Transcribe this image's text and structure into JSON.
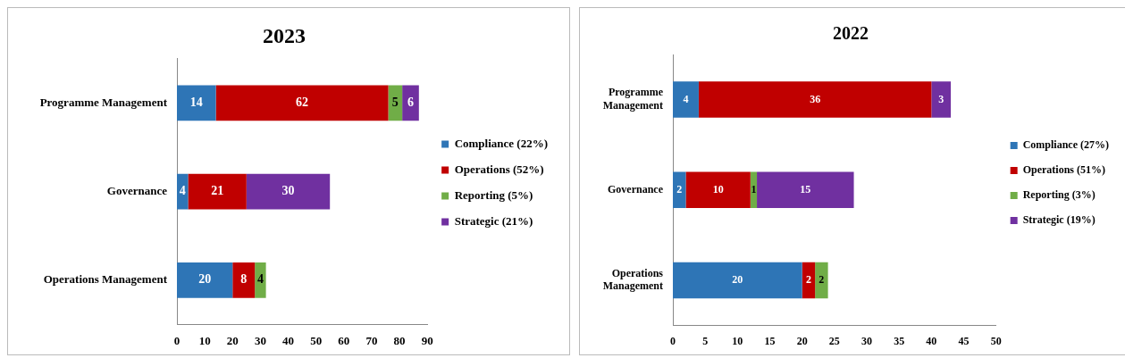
{
  "chart_data": [
    {
      "type": "bar",
      "orientation": "horizontal",
      "stacked": true,
      "title": "2023",
      "categories": [
        "Programme Management",
        "Governance",
        "Operations Management"
      ],
      "series": [
        {
          "name": "Compliance (22%)",
          "color": "#2e75b6",
          "values": [
            14,
            4,
            20
          ]
        },
        {
          "name": "Operations (52%)",
          "color": "#c00000",
          "values": [
            62,
            21,
            8
          ]
        },
        {
          "name": "Reporting (5%)",
          "color": "#70ad47",
          "values": [
            5,
            null,
            4
          ]
        },
        {
          "name": "Strategic (21%)",
          "color": "#7030a0",
          "values": [
            6,
            30,
            null
          ]
        }
      ],
      "xlim": [
        0,
        90
      ],
      "xticks": [
        0,
        10,
        20,
        30,
        40,
        50,
        60,
        70,
        80,
        90
      ],
      "data_labels": true,
      "legend": "right",
      "grid": false
    },
    {
      "type": "bar",
      "orientation": "horizontal",
      "stacked": true,
      "title": "2022",
      "categories": [
        "Programme Management",
        "Governance",
        "Operations Management"
      ],
      "series": [
        {
          "name": "Compliance (27%)",
          "color": "#2e75b6",
          "values": [
            4,
            2,
            20
          ]
        },
        {
          "name": "Operations (51%)",
          "color": "#c00000",
          "values": [
            36,
            10,
            2
          ]
        },
        {
          "name": "Reporting (3%)",
          "color": "#70ad47",
          "values": [
            null,
            1,
            2
          ]
        },
        {
          "name": "Strategic (19%)",
          "color": "#7030a0",
          "values": [
            3,
            15,
            null
          ]
        }
      ],
      "xlim": [
        0,
        50
      ],
      "xticks": [
        0,
        5,
        10,
        15,
        20,
        25,
        30,
        35,
        40,
        45,
        50
      ],
      "data_labels": true,
      "legend": "right",
      "grid": false
    }
  ]
}
